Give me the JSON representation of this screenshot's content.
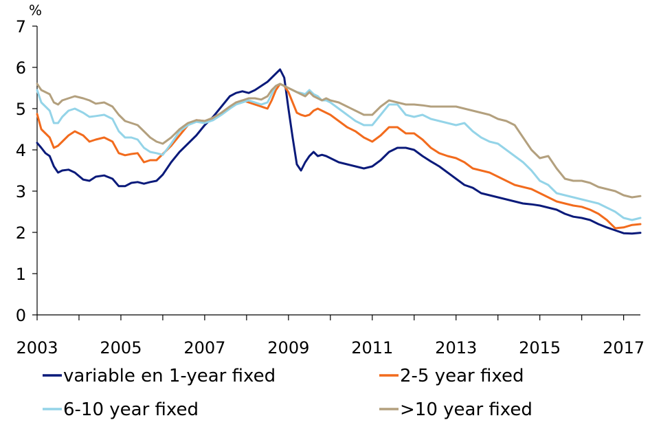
{
  "chart_data": {
    "type": "line",
    "ylabel": "%",
    "ylim": [
      0,
      7
    ],
    "xlim": [
      2003,
      2017.4
    ],
    "y_ticks": [
      "0",
      "1",
      "2",
      "3",
      "4",
      "5",
      "6",
      "7"
    ],
    "x_ticks": [
      "2003",
      "2005",
      "2007",
      "2009",
      "2011",
      "2013",
      "2015",
      "2017"
    ],
    "grid": false,
    "legend_position": "bottom",
    "series": [
      {
        "name": "variable en 1-year fixed",
        "color": "#0a1a7a",
        "x": [
          2003,
          2003.1,
          2003.2,
          2003.3,
          2003.4,
          2003.5,
          2003.6,
          2003.75,
          2003.9,
          2004.1,
          2004.25,
          2004.4,
          2004.6,
          2004.8,
          2004.95,
          2005.1,
          2005.25,
          2005.4,
          2005.55,
          2005.7,
          2005.85,
          2006,
          2006.2,
          2006.4,
          2006.6,
          2006.8,
          2007,
          2007.2,
          2007.4,
          2007.6,
          2007.75,
          2007.9,
          2008.05,
          2008.2,
          2008.35,
          2008.5,
          2008.6,
          2008.7,
          2008.8,
          2008.9,
          2009,
          2009.1,
          2009.2,
          2009.3,
          2009.4,
          2009.5,
          2009.6,
          2009.7,
          2009.8,
          2009.9,
          2010,
          2010.2,
          2010.4,
          2010.6,
          2010.8,
          2011,
          2011.2,
          2011.4,
          2011.6,
          2011.8,
          2012,
          2012.2,
          2012.4,
          2012.6,
          2012.8,
          2013,
          2013.2,
          2013.4,
          2013.6,
          2013.8,
          2014,
          2014.2,
          2014.4,
          2014.6,
          2014.8,
          2015,
          2015.2,
          2015.4,
          2015.6,
          2015.8,
          2016,
          2016.2,
          2016.4,
          2016.6,
          2016.8,
          2017,
          2017.2,
          2017.4
        ],
        "values": [
          4.17,
          4.05,
          3.92,
          3.85,
          3.6,
          3.45,
          3.5,
          3.52,
          3.45,
          3.28,
          3.25,
          3.35,
          3.38,
          3.3,
          3.12,
          3.12,
          3.2,
          3.22,
          3.18,
          3.22,
          3.25,
          3.4,
          3.7,
          3.95,
          4.15,
          4.35,
          4.6,
          4.8,
          5.05,
          5.3,
          5.38,
          5.42,
          5.38,
          5.45,
          5.55,
          5.65,
          5.75,
          5.85,
          5.95,
          5.75,
          5.0,
          4.3,
          3.65,
          3.5,
          3.7,
          3.85,
          3.95,
          3.85,
          3.88,
          3.85,
          3.8,
          3.7,
          3.65,
          3.6,
          3.55,
          3.6,
          3.75,
          3.95,
          4.05,
          4.05,
          4.0,
          3.85,
          3.72,
          3.6,
          3.45,
          3.3,
          3.15,
          3.08,
          2.95,
          2.9,
          2.85,
          2.8,
          2.75,
          2.7,
          2.68,
          2.65,
          2.6,
          2.55,
          2.45,
          2.38,
          2.35,
          2.3,
          2.2,
          2.12,
          2.05,
          1.98,
          1.97,
          1.99
        ]
      },
      {
        "name": "2-5 year fixed",
        "color": "#f26b1d",
        "x": [
          2003,
          2003.1,
          2003.2,
          2003.3,
          2003.4,
          2003.5,
          2003.6,
          2003.75,
          2003.9,
          2004.1,
          2004.25,
          2004.4,
          2004.6,
          2004.8,
          2004.95,
          2005.1,
          2005.25,
          2005.4,
          2005.55,
          2005.7,
          2005.85,
          2006,
          2006.2,
          2006.4,
          2006.6,
          2006.8,
          2007,
          2007.2,
          2007.4,
          2007.6,
          2007.75,
          2007.9,
          2008.05,
          2008.2,
          2008.35,
          2008.5,
          2008.6,
          2008.7,
          2008.8,
          2008.9,
          2009,
          2009.1,
          2009.2,
          2009.3,
          2009.4,
          2009.5,
          2009.6,
          2009.7,
          2009.8,
          2009.9,
          2010,
          2010.2,
          2010.4,
          2010.6,
          2010.8,
          2011,
          2011.2,
          2011.4,
          2011.6,
          2011.8,
          2012,
          2012.2,
          2012.4,
          2012.6,
          2012.8,
          2013,
          2013.2,
          2013.4,
          2013.6,
          2013.8,
          2014,
          2014.2,
          2014.4,
          2014.6,
          2014.8,
          2015,
          2015.2,
          2015.4,
          2015.6,
          2015.8,
          2016,
          2016.2,
          2016.4,
          2016.6,
          2016.8,
          2017,
          2017.2,
          2017.4
        ],
        "values": [
          4.87,
          4.5,
          4.4,
          4.3,
          4.05,
          4.1,
          4.2,
          4.35,
          4.45,
          4.35,
          4.2,
          4.25,
          4.3,
          4.2,
          3.92,
          3.87,
          3.9,
          3.92,
          3.7,
          3.75,
          3.75,
          3.9,
          4.1,
          4.35,
          4.6,
          4.72,
          4.7,
          4.75,
          4.9,
          5.05,
          5.15,
          5.2,
          5.15,
          5.1,
          5.05,
          5.0,
          5.2,
          5.45,
          5.6,
          5.55,
          5.4,
          5.15,
          4.9,
          4.85,
          4.82,
          4.85,
          4.95,
          5.0,
          4.95,
          4.9,
          4.85,
          4.7,
          4.55,
          4.45,
          4.3,
          4.2,
          4.35,
          4.55,
          4.55,
          4.4,
          4.4,
          4.25,
          4.05,
          3.92,
          3.85,
          3.8,
          3.7,
          3.55,
          3.5,
          3.45,
          3.35,
          3.25,
          3.15,
          3.1,
          3.05,
          2.95,
          2.85,
          2.75,
          2.7,
          2.65,
          2.62,
          2.55,
          2.45,
          2.3,
          2.1,
          2.12,
          2.18,
          2.2
        ]
      },
      {
        "name": "6-10 year fixed",
        "color": "#94d4e8",
        "x": [
          2003,
          2003.1,
          2003.2,
          2003.3,
          2003.4,
          2003.5,
          2003.6,
          2003.75,
          2003.9,
          2004.1,
          2004.25,
          2004.4,
          2004.6,
          2004.8,
          2004.95,
          2005.1,
          2005.25,
          2005.4,
          2005.55,
          2005.7,
          2005.85,
          2006,
          2006.2,
          2006.4,
          2006.6,
          2006.8,
          2007,
          2007.2,
          2007.4,
          2007.6,
          2007.75,
          2007.9,
          2008.05,
          2008.2,
          2008.35,
          2008.5,
          2008.6,
          2008.7,
          2008.8,
          2008.9,
          2009,
          2009.1,
          2009.2,
          2009.3,
          2009.4,
          2009.5,
          2009.6,
          2009.7,
          2009.8,
          2009.9,
          2010,
          2010.2,
          2010.4,
          2010.6,
          2010.8,
          2011,
          2011.2,
          2011.4,
          2011.6,
          2011.8,
          2012,
          2012.2,
          2012.4,
          2012.6,
          2012.8,
          2013,
          2013.2,
          2013.4,
          2013.6,
          2013.8,
          2014,
          2014.2,
          2014.4,
          2014.6,
          2014.8,
          2015,
          2015.2,
          2015.4,
          2015.6,
          2015.8,
          2016,
          2016.2,
          2016.4,
          2016.6,
          2016.8,
          2017,
          2017.2,
          2017.4
        ],
        "values": [
          5.45,
          5.15,
          5.05,
          4.95,
          4.65,
          4.65,
          4.8,
          4.95,
          5.0,
          4.9,
          4.8,
          4.82,
          4.85,
          4.75,
          4.45,
          4.3,
          4.3,
          4.25,
          4.05,
          3.95,
          3.92,
          3.88,
          4.15,
          4.45,
          4.6,
          4.68,
          4.65,
          4.72,
          4.85,
          5.0,
          5.1,
          5.15,
          5.2,
          5.15,
          5.1,
          5.15,
          5.35,
          5.55,
          5.6,
          5.55,
          5.5,
          5.45,
          5.4,
          5.38,
          5.35,
          5.45,
          5.35,
          5.3,
          5.2,
          5.2,
          5.15,
          5.0,
          4.85,
          4.7,
          4.6,
          4.6,
          4.85,
          5.1,
          5.1,
          4.85,
          4.8,
          4.85,
          4.75,
          4.7,
          4.65,
          4.6,
          4.65,
          4.45,
          4.3,
          4.2,
          4.15,
          4.0,
          3.85,
          3.7,
          3.5,
          3.25,
          3.15,
          2.95,
          2.9,
          2.85,
          2.8,
          2.75,
          2.7,
          2.6,
          2.5,
          2.35,
          2.3,
          2.35
        ]
      },
      {
        "name": ">10 year fixed",
        "color": "#b3a07e",
        "x": [
          2003,
          2003.1,
          2003.2,
          2003.3,
          2003.4,
          2003.5,
          2003.6,
          2003.75,
          2003.9,
          2004.1,
          2004.25,
          2004.4,
          2004.6,
          2004.8,
          2004.95,
          2005.1,
          2005.25,
          2005.4,
          2005.55,
          2005.7,
          2005.85,
          2006,
          2006.2,
          2006.4,
          2006.6,
          2006.8,
          2007,
          2007.2,
          2007.4,
          2007.6,
          2007.75,
          2007.9,
          2008.05,
          2008.2,
          2008.35,
          2008.5,
          2008.6,
          2008.7,
          2008.8,
          2008.9,
          2009,
          2009.1,
          2009.2,
          2009.3,
          2009.4,
          2009.5,
          2009.6,
          2009.7,
          2009.8,
          2009.9,
          2010,
          2010.2,
          2010.4,
          2010.6,
          2010.8,
          2011,
          2011.2,
          2011.4,
          2011.6,
          2011.8,
          2012,
          2012.2,
          2012.4,
          2012.6,
          2012.8,
          2013,
          2013.2,
          2013.4,
          2013.6,
          2013.8,
          2014,
          2014.2,
          2014.4,
          2014.6,
          2014.8,
          2015,
          2015.2,
          2015.4,
          2015.6,
          2015.8,
          2016,
          2016.2,
          2016.4,
          2016.6,
          2016.8,
          2017,
          2017.2,
          2017.4
        ],
        "values": [
          5.6,
          5.45,
          5.4,
          5.35,
          5.15,
          5.1,
          5.2,
          5.25,
          5.3,
          5.25,
          5.2,
          5.12,
          5.15,
          5.05,
          4.85,
          4.7,
          4.65,
          4.6,
          4.45,
          4.3,
          4.2,
          4.15,
          4.3,
          4.5,
          4.65,
          4.72,
          4.7,
          4.78,
          4.9,
          5.05,
          5.15,
          5.2,
          5.25,
          5.25,
          5.22,
          5.3,
          5.45,
          5.55,
          5.6,
          5.55,
          5.5,
          5.45,
          5.4,
          5.35,
          5.3,
          5.4,
          5.3,
          5.25,
          5.2,
          5.25,
          5.2,
          5.15,
          5.05,
          4.95,
          4.85,
          4.85,
          5.05,
          5.2,
          5.15,
          5.1,
          5.1,
          5.08,
          5.05,
          5.05,
          5.05,
          5.05,
          5.0,
          4.95,
          4.9,
          4.85,
          4.75,
          4.7,
          4.6,
          4.3,
          4.0,
          3.8,
          3.85,
          3.55,
          3.3,
          3.25,
          3.25,
          3.2,
          3.1,
          3.05,
          3.0,
          2.9,
          2.85,
          2.88
        ]
      }
    ]
  }
}
